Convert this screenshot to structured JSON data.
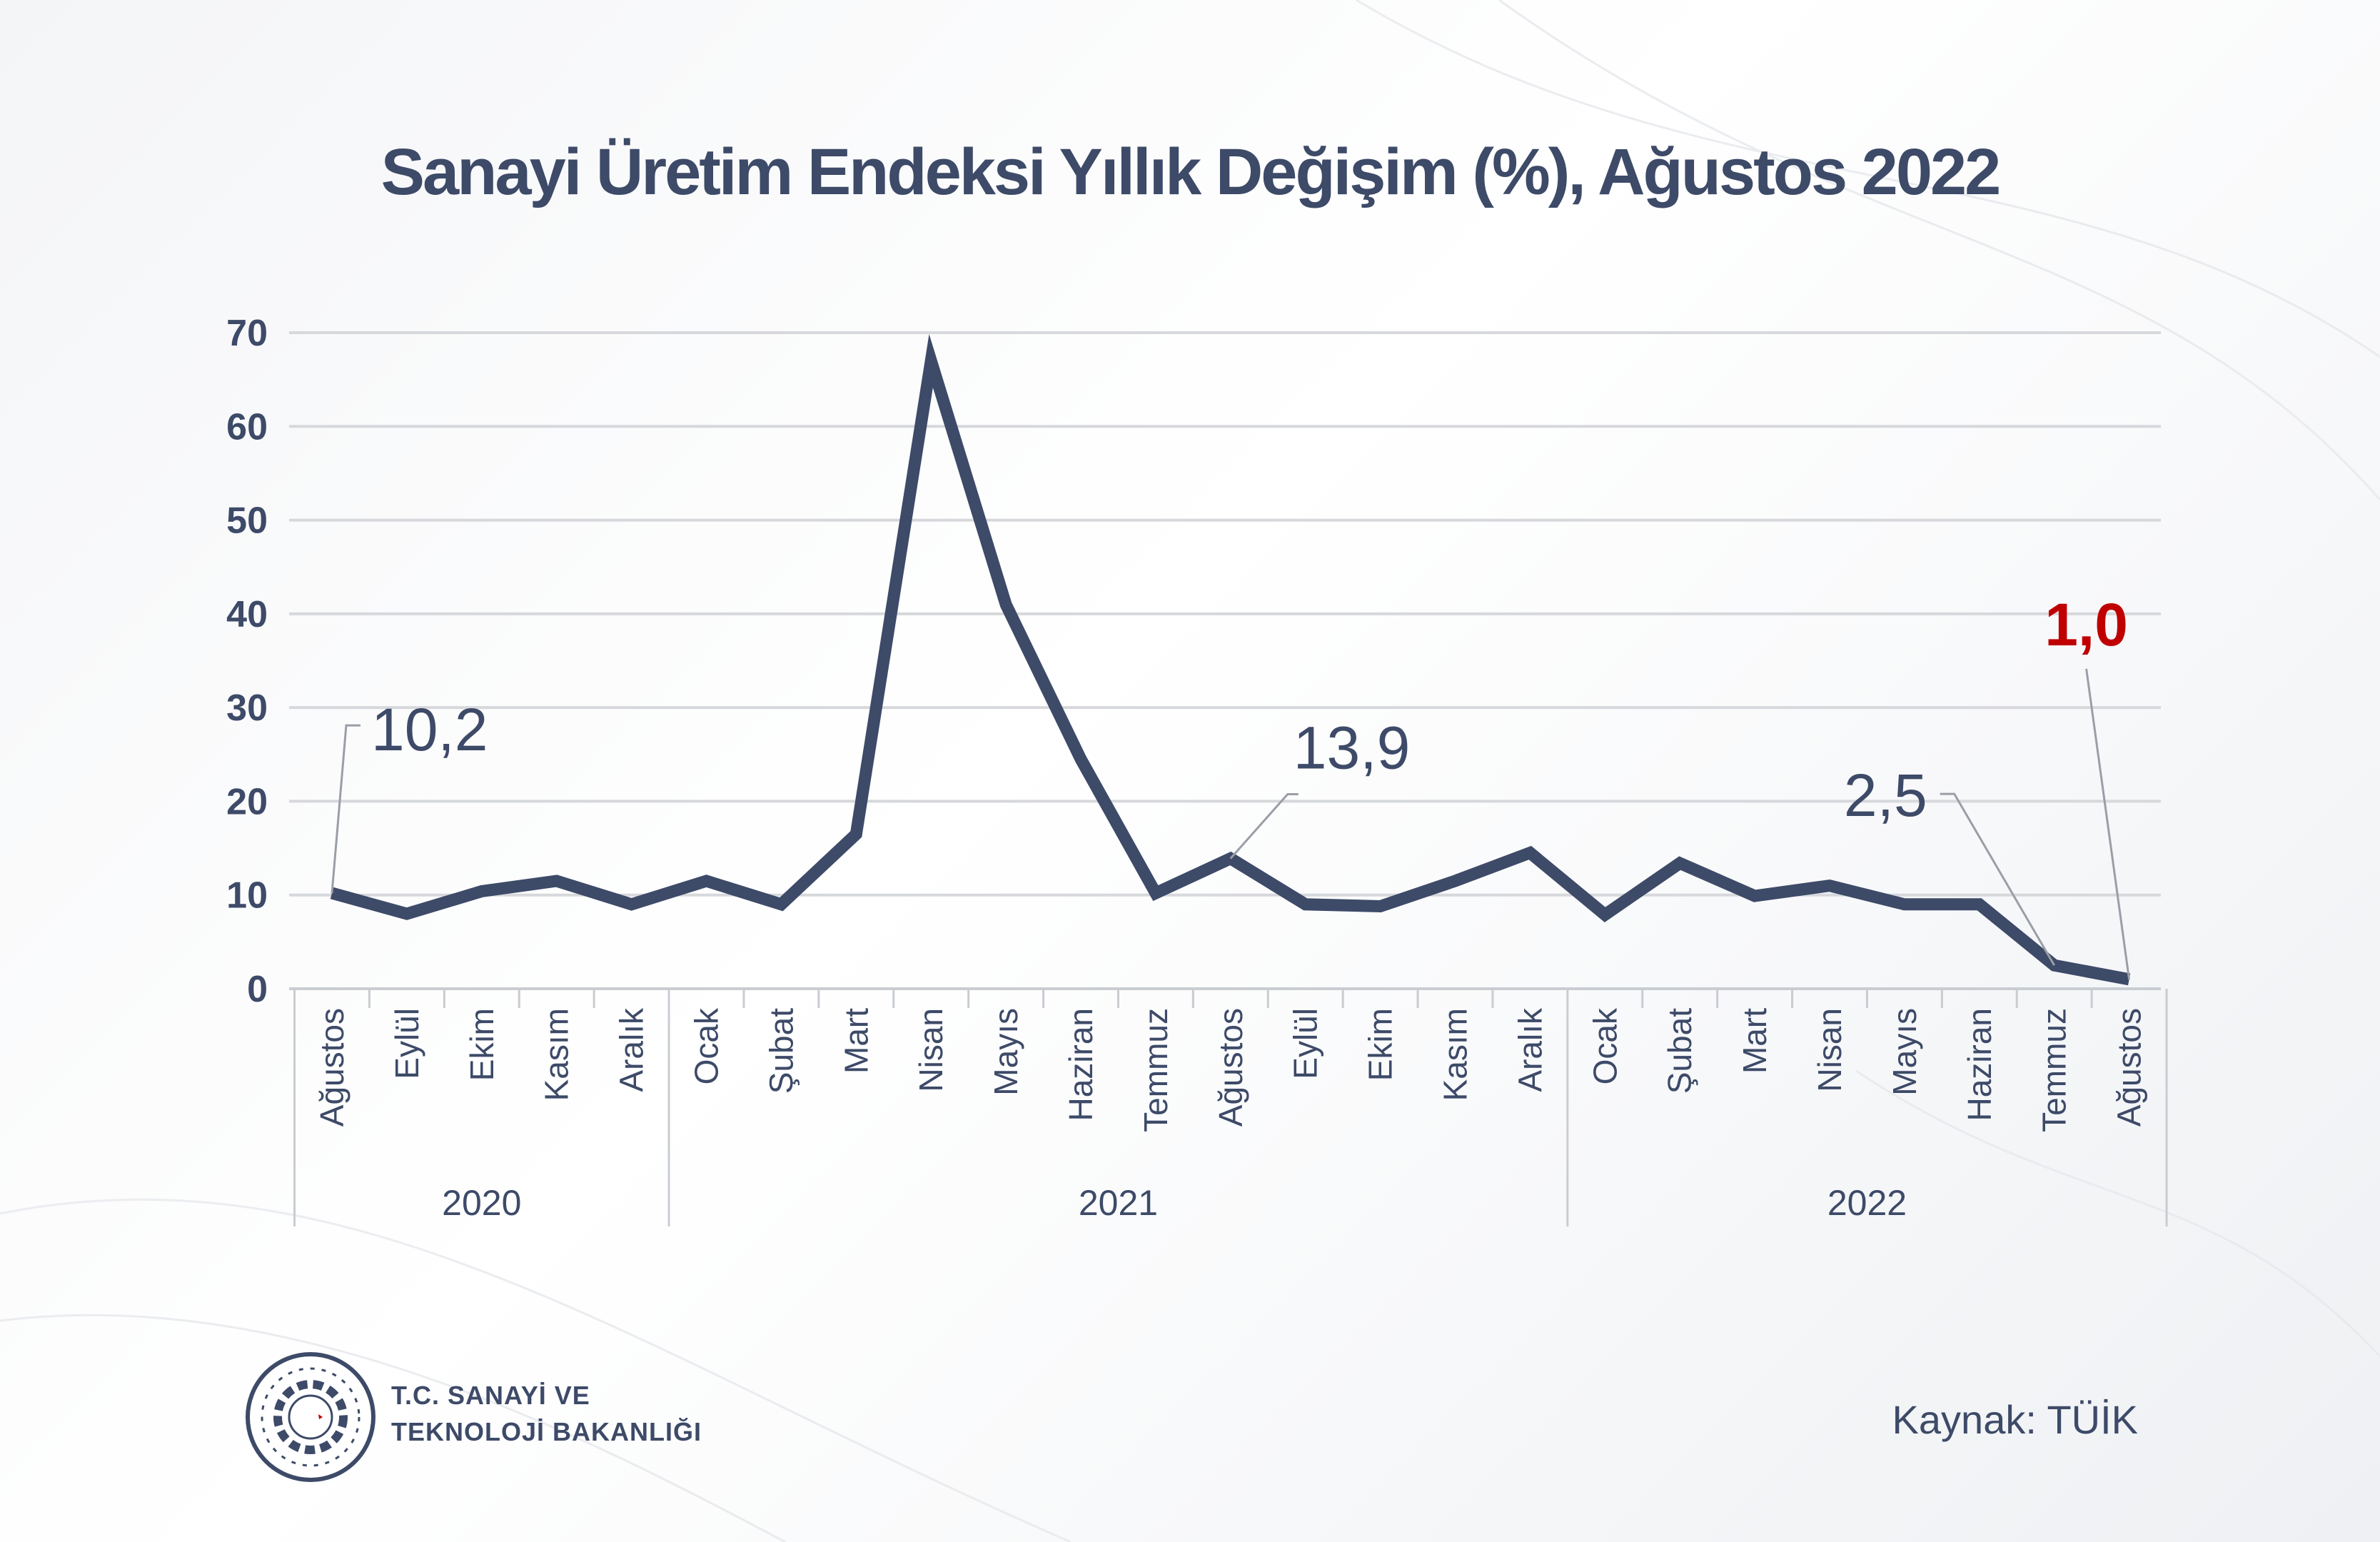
{
  "chart_data": {
    "type": "line",
    "title": "Sanayi Üretim Endeksi Yıllık Değişim (%), Ağustos 2022",
    "ylim": [
      0,
      70
    ],
    "yticks": [
      0,
      10,
      20,
      30,
      40,
      50,
      60,
      70
    ],
    "grid": true,
    "categories": [
      "Ağustos",
      "Eylül",
      "Ekim",
      "Kasım",
      "Aralık",
      "Ocak",
      "Şubat",
      "Mart",
      "Nisan",
      "Mayıs",
      "Haziran",
      "Temmuz",
      "Ağustos",
      "Eylül",
      "Ekim",
      "Kasım",
      "Aralık",
      "Ocak",
      "Şubat",
      "Mart",
      "Nisan",
      "Mayıs",
      "Haziran",
      "Temmuz",
      "Ağustos"
    ],
    "years": [
      {
        "label": "2020",
        "start": 0,
        "end": 4
      },
      {
        "label": "2021",
        "start": 5,
        "end": 16
      },
      {
        "label": "2022",
        "start": 17,
        "end": 24
      }
    ],
    "series": [
      {
        "name": "Yıllık Değişim (%)",
        "values": [
          10.2,
          8.0,
          10.4,
          11.5,
          9.0,
          11.5,
          9.0,
          16.5,
          67.0,
          41.0,
          24.5,
          10.2,
          13.9,
          9.0,
          8.8,
          11.5,
          14.5,
          7.9,
          13.4,
          9.9,
          11.0,
          9.0,
          9.0,
          2.5,
          1.0
        ]
      }
    ],
    "annotations": [
      {
        "index": 0,
        "text": "10,2",
        "highlight": false
      },
      {
        "index": 12,
        "text": "13,9",
        "highlight": false
      },
      {
        "index": 23,
        "text": "2,5",
        "highlight": false
      },
      {
        "index": 24,
        "text": "1,0",
        "highlight": true
      }
    ]
  },
  "colors": {
    "line": "#3d4a68",
    "text": "#3d4a68",
    "highlight": "#c00000",
    "grid": "#d6d8dc",
    "leader": "#9a9ea6"
  },
  "logo": {
    "line1": "T.C. SANAYİ VE",
    "line2": "TEKNOLOJİ BAKANLIĞI"
  },
  "source": "Kaynak: TÜİK"
}
